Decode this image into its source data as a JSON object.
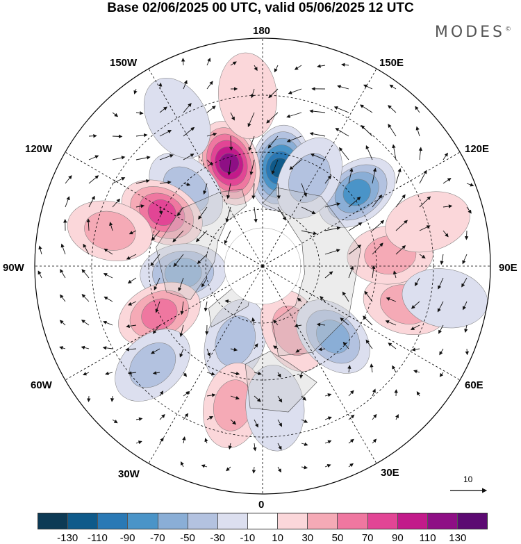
{
  "title": "Base 02/06/2025 00 UTC, valid 05/06/2025 12 UTC",
  "logo": {
    "text": "MODES",
    "mark": "©"
  },
  "longitude_labels": {
    "lon_180": "180",
    "lon_150e": "150E",
    "lon_120e": "120E",
    "lon_90e": "90E",
    "lon_60e": "60E",
    "lon_30e": "30E",
    "lon_0": "0",
    "lon_30w": "30W",
    "lon_60w": "60W",
    "lon_90w": "90W",
    "lon_120w": "120W",
    "lon_150w": "150W"
  },
  "vector_scale_label": "10",
  "colorbar": {
    "colors": [
      "#0d3a55",
      "#0f5a8a",
      "#2a79b5",
      "#4a94c8",
      "#8aaed6",
      "#b3c2e0",
      "#dcdfef",
      "#ffffff",
      "#fbd7da",
      "#f5aab6",
      "#ef77a0",
      "#e24595",
      "#c21a8a",
      "#8e0f85",
      "#5c0a72"
    ],
    "tick_labels": [
      "-130",
      "-110",
      "-90",
      "-70",
      "-50",
      "-30",
      "-10",
      "10",
      "30",
      "50",
      "70",
      "90",
      "110",
      "130"
    ]
  },
  "anomalies": [
    {
      "lon": 170,
      "lat": 55,
      "value": -125
    },
    {
      "lon": -162,
      "lat": 52,
      "value": 120
    },
    {
      "lon": 128,
      "lat": 48,
      "value": -85
    },
    {
      "lon": 152,
      "lat": 55,
      "value": -45
    },
    {
      "lon": -135,
      "lat": 52,
      "value": -40
    },
    {
      "lon": -118,
      "lat": 50,
      "value": 80
    },
    {
      "lon": -103,
      "lat": 35,
      "value": 40
    },
    {
      "lon": -85,
      "lat": 62,
      "value": -55
    },
    {
      "lon": -65,
      "lat": 50,
      "value": 70
    },
    {
      "lon": -48,
      "lat": 38,
      "value": -35
    },
    {
      "lon": -20,
      "lat": 62,
      "value": -50
    },
    {
      "lon": -12,
      "lat": 40,
      "value": 40
    },
    {
      "lon": 5,
      "lat": 40,
      "value": -30
    },
    {
      "lon": 25,
      "lat": 65,
      "value": 45
    },
    {
      "lon": 45,
      "lat": 55,
      "value": -55
    },
    {
      "lon": 75,
      "lat": 38,
      "value": 45
    },
    {
      "lon": 95,
      "lat": 45,
      "value": 40
    },
    {
      "lon": 80,
      "lat": 25,
      "value": -30
    },
    {
      "lon": 105,
      "lat": 30,
      "value": 30
    },
    {
      "lon": -150,
      "lat": 30,
      "value": -30
    },
    {
      "lon": -175,
      "lat": 30,
      "value": 20
    }
  ]
}
